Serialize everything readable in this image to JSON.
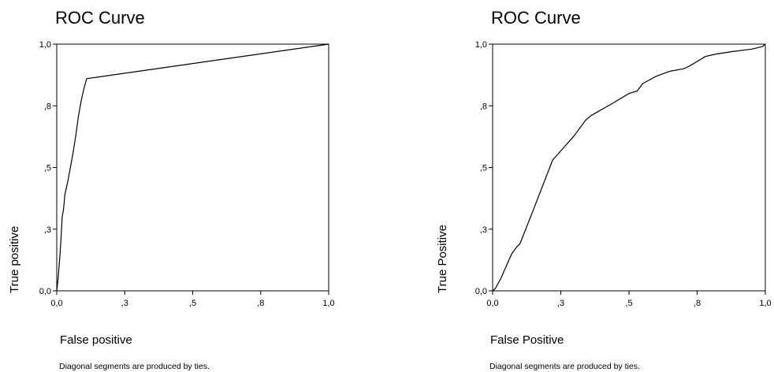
{
  "chart_data": [
    {
      "type": "line",
      "title": "ROC Curve",
      "xlabel": "False positive",
      "ylabel": "True positive",
      "footnote": "Diagonal segments are produced by ties.",
      "xlim": [
        0,
        1
      ],
      "ylim": [
        0,
        1
      ],
      "x_ticks": [
        0,
        0.25,
        0.5,
        0.75,
        1.0
      ],
      "x_tick_labels": [
        "0,0",
        ",3",
        ",5",
        ",8",
        "1,0"
      ],
      "y_ticks": [
        0,
        0.25,
        0.5,
        0.75,
        1.0
      ],
      "y_tick_labels": [
        "0,0",
        ",3",
        ",5",
        ",8",
        "1,0"
      ],
      "grid": false,
      "series": [
        {
          "x": [
            0,
            0.005,
            0.01,
            0.015,
            0.02,
            0.025,
            0.03,
            0.04,
            0.05,
            0.06,
            0.07,
            0.08,
            0.09,
            0.1,
            0.11,
            1.0
          ],
          "y": [
            0,
            0.05,
            0.12,
            0.2,
            0.3,
            0.33,
            0.39,
            0.44,
            0.5,
            0.56,
            0.63,
            0.71,
            0.77,
            0.82,
            0.86,
            1.0
          ]
        }
      ]
    },
    {
      "type": "line",
      "title": "ROC Curve",
      "xlabel": "False Positive",
      "ylabel": "True Positive",
      "footnote": "Diagonal segments are produced by ties.",
      "xlim": [
        0,
        1
      ],
      "ylim": [
        0,
        1
      ],
      "x_ticks": [
        0,
        0.25,
        0.5,
        0.75,
        1.0
      ],
      "x_tick_labels": [
        "0,0",
        ",3",
        ",5",
        ",8",
        "1,0"
      ],
      "y_ticks": [
        0,
        0.25,
        0.5,
        0.75,
        1.0
      ],
      "y_tick_labels": [
        "0,0",
        ",3",
        ",5",
        ",8",
        "1,0"
      ],
      "grid": false,
      "series": [
        {
          "x": [
            0,
            0.01,
            0.03,
            0.05,
            0.07,
            0.09,
            0.1,
            0.15,
            0.22,
            0.26,
            0.3,
            0.34,
            0.36,
            0.44,
            0.5,
            0.53,
            0.55,
            0.6,
            0.65,
            0.7,
            0.72,
            0.78,
            0.82,
            0.88,
            0.95,
            0.99,
            1.0
          ],
          "y": [
            0,
            0.01,
            0.05,
            0.1,
            0.15,
            0.18,
            0.19,
            0.33,
            0.53,
            0.58,
            0.63,
            0.69,
            0.71,
            0.76,
            0.8,
            0.81,
            0.84,
            0.87,
            0.89,
            0.9,
            0.91,
            0.95,
            0.96,
            0.97,
            0.98,
            0.99,
            1.0
          ]
        }
      ]
    }
  ]
}
